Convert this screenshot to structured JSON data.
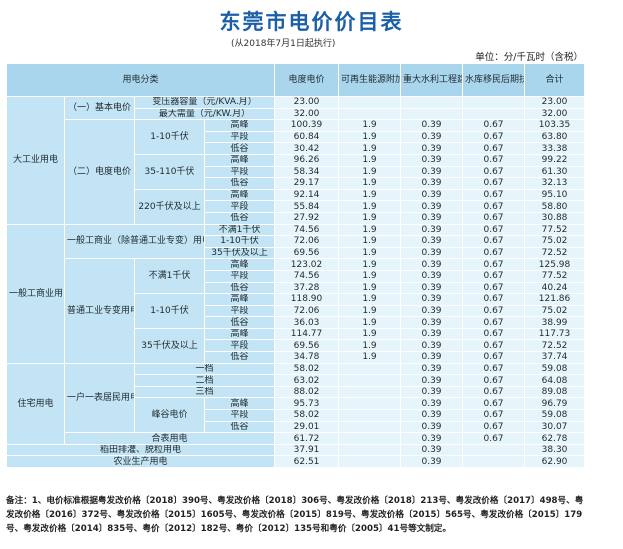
{
  "title": "东莞市电价价目表",
  "subtitle": "(从2018年7月1日起执行)",
  "unit": "单位：分/千瓦时（含税）",
  "headers": {
    "category": "用电分类",
    "price": "电度电价",
    "renewable": "可再生能源附加",
    "water": "重大水利工程建设基金",
    "reservoir": "水库移民后期扶持基金",
    "total": "合计"
  },
  "labels": {
    "large_industry": "大工业用电",
    "basic_price": "（一）基本电价",
    "transformer": "变压器容量（元/KVA.月）",
    "max_demand": "最大需量（元/KW.月）",
    "energy_price": "（二）电度电价",
    "v1_10": "1-10千伏",
    "v35_110": "35-110千伏",
    "v220": "220千伏及以上",
    "peak": "高峰",
    "flat": "平段",
    "valley": "低谷",
    "general": "一般工商业用电",
    "general_common": "一般工商业（除普通工业专变）用电",
    "below1": "不满1千伏",
    "v1_10_b": "1-10千伏",
    "v35_above": "35千伏及以上",
    "ordinary_industry": "普通工业专变用电",
    "below1_b": "不满1千伏",
    "v1_10_c": "1-10千伏",
    "v35_above_b": "35千伏及以上",
    "residential": "住宅用电",
    "household": "一户一表居民用电",
    "tier1": "一档",
    "tier2": "二档",
    "tier3": "三档",
    "tou": "峰谷电价",
    "combined": "合表用电",
    "drainage": "稻田排灌、脱粒用电",
    "agriculture": "农业生产用电"
  },
  "rows": {
    "bt": [
      "23.00",
      "",
      "",
      "",
      "23.00"
    ],
    "bm": [
      "32.00",
      "",
      "",
      "",
      "32.00"
    ],
    "a1p": [
      "100.39",
      "1.9",
      "0.39",
      "0.67",
      "103.35"
    ],
    "a1f": [
      "60.84",
      "1.9",
      "0.39",
      "0.67",
      "63.80"
    ],
    "a1v": [
      "30.42",
      "1.9",
      "0.39",
      "0.67",
      "33.38"
    ],
    "a2p": [
      "96.26",
      "1.9",
      "0.39",
      "0.67",
      "99.22"
    ],
    "a2f": [
      "58.34",
      "1.9",
      "0.39",
      "0.67",
      "61.30"
    ],
    "a2v": [
      "29.17",
      "1.9",
      "0.39",
      "0.67",
      "32.13"
    ],
    "a3p": [
      "92.14",
      "1.9",
      "0.39",
      "0.67",
      "95.10"
    ],
    "a3f": [
      "55.84",
      "1.9",
      "0.39",
      "0.67",
      "58.80"
    ],
    "a3v": [
      "27.92",
      "1.9",
      "0.39",
      "0.67",
      "30.88"
    ],
    "g1": [
      "74.56",
      "1.9",
      "0.39",
      "0.67",
      "77.52"
    ],
    "g2": [
      "72.06",
      "1.9",
      "0.39",
      "0.67",
      "75.02"
    ],
    "g3": [
      "69.56",
      "1.9",
      "0.39",
      "0.67",
      "72.52"
    ],
    "p1p": [
      "123.02",
      "1.9",
      "0.39",
      "0.67",
      "125.98"
    ],
    "p1f": [
      "74.56",
      "1.9",
      "0.39",
      "0.67",
      "77.52"
    ],
    "p1v": [
      "37.28",
      "1.9",
      "0.39",
      "0.67",
      "40.24"
    ],
    "p2p": [
      "118.90",
      "1.9",
      "0.39",
      "0.67",
      "121.86"
    ],
    "p2f": [
      "72.06",
      "1.9",
      "0.39",
      "0.67",
      "75.02"
    ],
    "p2v": [
      "36.03",
      "1.9",
      "0.39",
      "0.67",
      "38.99"
    ],
    "p3p": [
      "114.77",
      "1.9",
      "0.39",
      "0.67",
      "117.73"
    ],
    "p3f": [
      "69.56",
      "1.9",
      "0.39",
      "0.67",
      "72.52"
    ],
    "p3v": [
      "34.78",
      "1.9",
      "0.39",
      "0.67",
      "37.74"
    ],
    "r1": [
      "58.02",
      "",
      "0.39",
      "0.67",
      "59.08"
    ],
    "r2": [
      "63.02",
      "",
      "0.39",
      "0.67",
      "64.08"
    ],
    "r3": [
      "88.02",
      "",
      "0.39",
      "0.67",
      "89.08"
    ],
    "rtp": [
      "95.73",
      "",
      "0.39",
      "0.67",
      "96.79"
    ],
    "rtf": [
      "58.02",
      "",
      "0.39",
      "0.67",
      "59.08"
    ],
    "rtv": [
      "29.01",
      "",
      "0.39",
      "0.67",
      "30.07"
    ],
    "rc": [
      "61.72",
      "",
      "0.39",
      "0.67",
      "62.78"
    ],
    "dr": [
      "37.91",
      "",
      "0.39",
      "",
      "38.30"
    ],
    "ag": [
      "62.51",
      "",
      "0.39",
      "",
      "62.90"
    ]
  },
  "note": "备注：1、电价标准根据粤发改价格〔2018〕390号、粤发改价格〔2018〕306号、粤发改价格〔2018〕213号、粤发改价格〔2017〕498号、粤发改价格〔2016〕372号、粤发改价格〔2015〕1605号、粤发改价格〔2015〕819号、粤发改价格〔2015〕565号、粤发改价格〔2015〕179号、粤发改价格〔2014〕835号、粤价〔2012〕182号、粤价〔2012〕135号和粤价〔2005〕41号等文制定。"
}
